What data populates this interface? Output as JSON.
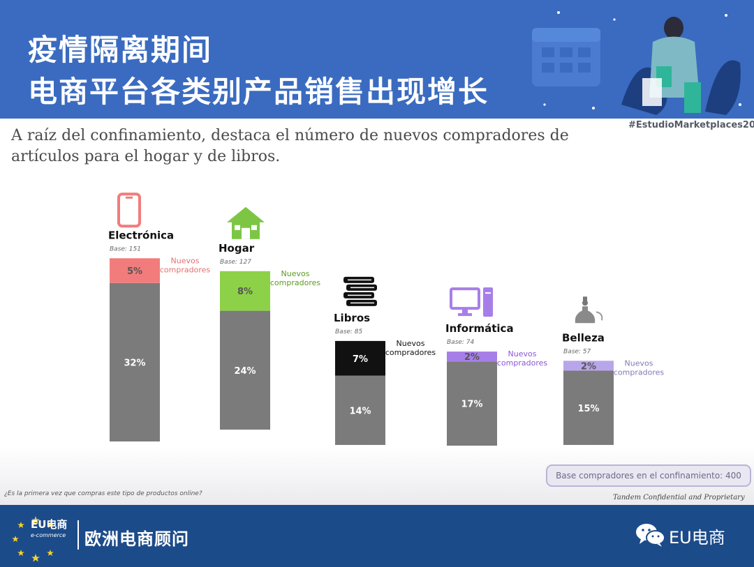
{
  "header": {
    "title_line1": "疫情隔离期间",
    "title_line2": "电商平台各类别产品销售出现增长",
    "hashtag": "#EstudioMarketplaces20"
  },
  "subtitle": "A raíz del confinamiento, destaca el número de nuevos compradores de artículos para el hogar y de libros.",
  "chart_data": {
    "type": "bar",
    "stacked": true,
    "unit": "%",
    "categories": [
      "Electrónica",
      "Hogar",
      "Libros",
      "Informática",
      "Belleza"
    ],
    "bases": [
      "Base: 151",
      "Base: 127",
      "Base: 85",
      "Base: 74",
      "Base: 57"
    ],
    "icons": [
      "smartphone-icon",
      "house-icon",
      "books-icon",
      "computer-icon",
      "perfume-icon"
    ],
    "series": [
      {
        "values": [
          32,
          24,
          14,
          17,
          15
        ],
        "color": "#7b7b7b",
        "labels": [
          "32%",
          "24%",
          "14%",
          "17%",
          "15%"
        ]
      },
      {
        "values": [
          5,
          8,
          7,
          2,
          2
        ],
        "colors": [
          "#f27c7c",
          "#8dd149",
          "#111111",
          "#a77ee8",
          "#b9a6ea"
        ],
        "labels": [
          "5%",
          "8%",
          "7%",
          "2%",
          "2%"
        ]
      }
    ],
    "annotations": [
      {
        "line1": "Nuevos",
        "line2": "compradores",
        "color": "#e46f6f"
      },
      {
        "line1": "Nuevos",
        "line2": "compradores",
        "color": "#5f9a21"
      },
      {
        "line1": "Nuevos",
        "line2": "compradores",
        "color": "#111111"
      },
      {
        "line1": "Nuevos",
        "line2": "compradores",
        "color": "#8a56d6"
      },
      {
        "line1": "Nuevos",
        "line2": "compradores",
        "color": "#7f7ab6"
      }
    ],
    "grid": false,
    "legend": "none"
  },
  "base_box": "Base compradores en el confinamiento: 400",
  "footnote": "¿Es la primera vez que compras este tipo de productos online?",
  "confidential": "Tandem Confidential and Proprietary",
  "footer": {
    "logo_main": "EU电商",
    "logo_sub": "e-commerce",
    "company": "欧洲电商顾问",
    "wechat_account": "EU电商"
  }
}
